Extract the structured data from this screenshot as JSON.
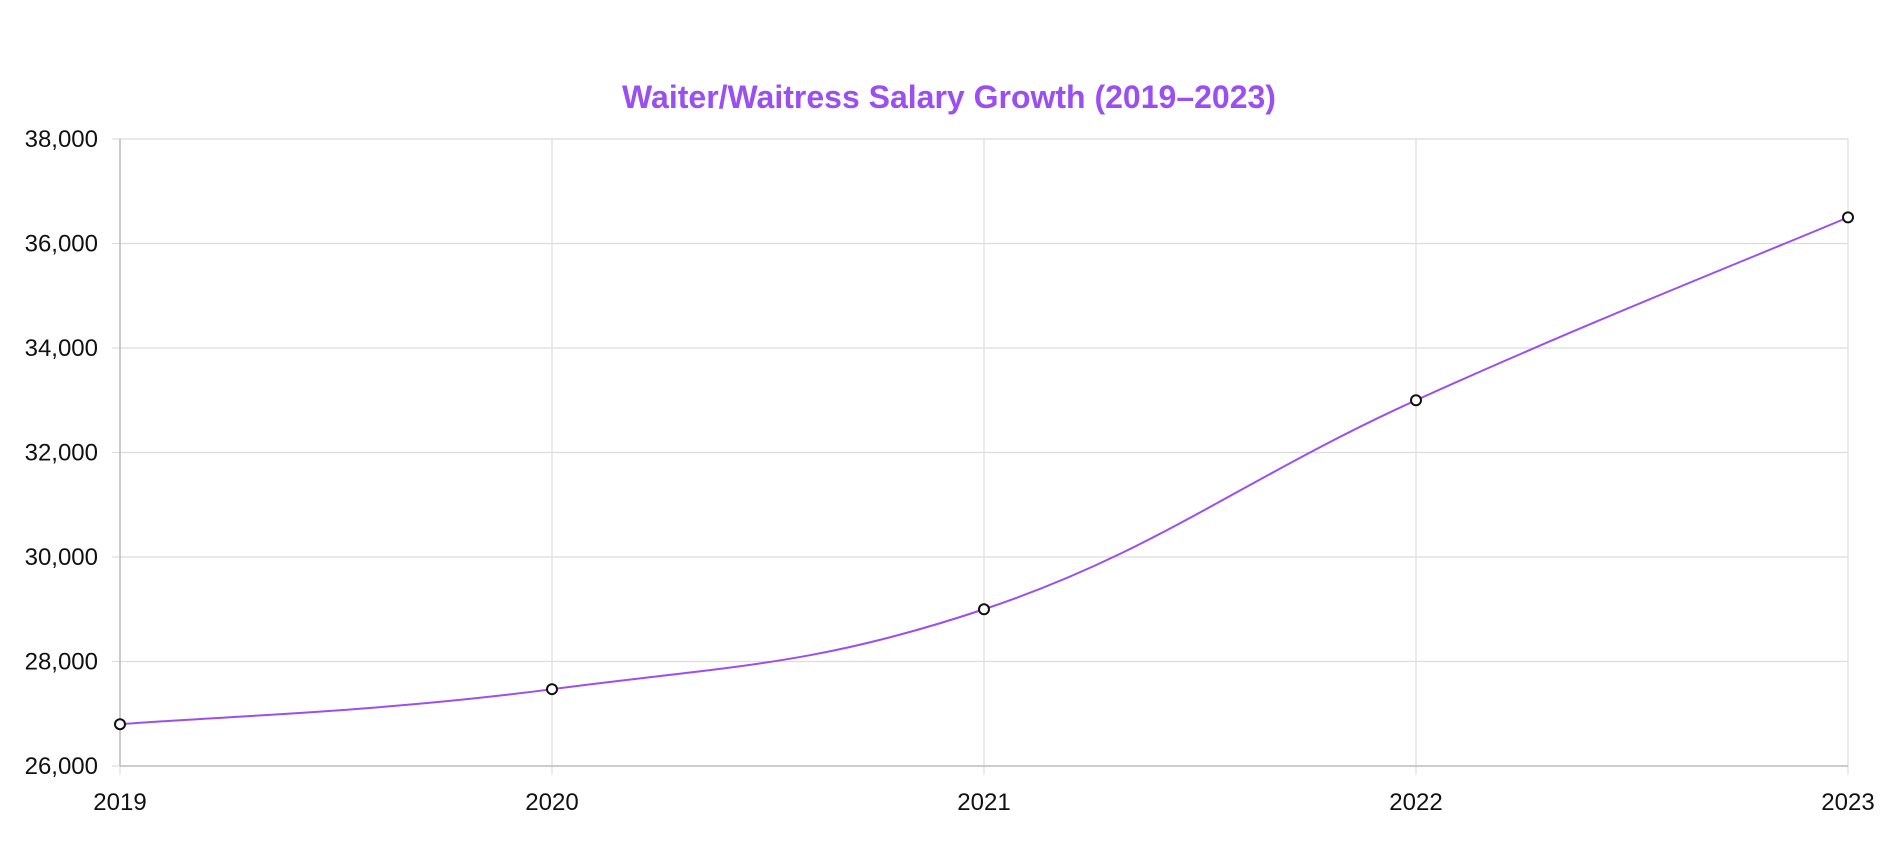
{
  "chart_data": {
    "type": "line",
    "title": "Waiter/Waitress Salary Growth (2019–2023)",
    "xlabel": "",
    "ylabel": "",
    "categories": [
      "2019",
      "2020",
      "2021",
      "2022",
      "2023"
    ],
    "series": [
      {
        "values": [
          26800,
          27470,
          29000,
          33000,
          36500
        ]
      }
    ],
    "ylim": [
      26000,
      38000
    ],
    "yticks": [
      26000,
      28000,
      30000,
      32000,
      34000,
      36000,
      38000
    ],
    "ytick_labels": [
      "26,000",
      "28,000",
      "30,000",
      "32,000",
      "34,000",
      "36,000",
      "38,000"
    ],
    "grid": true,
    "legend": "none",
    "colors": {
      "title": "#9b4ff0",
      "line": "#9b4ff0",
      "point_fill": "#ffffff",
      "point_stroke": "#111111"
    }
  }
}
